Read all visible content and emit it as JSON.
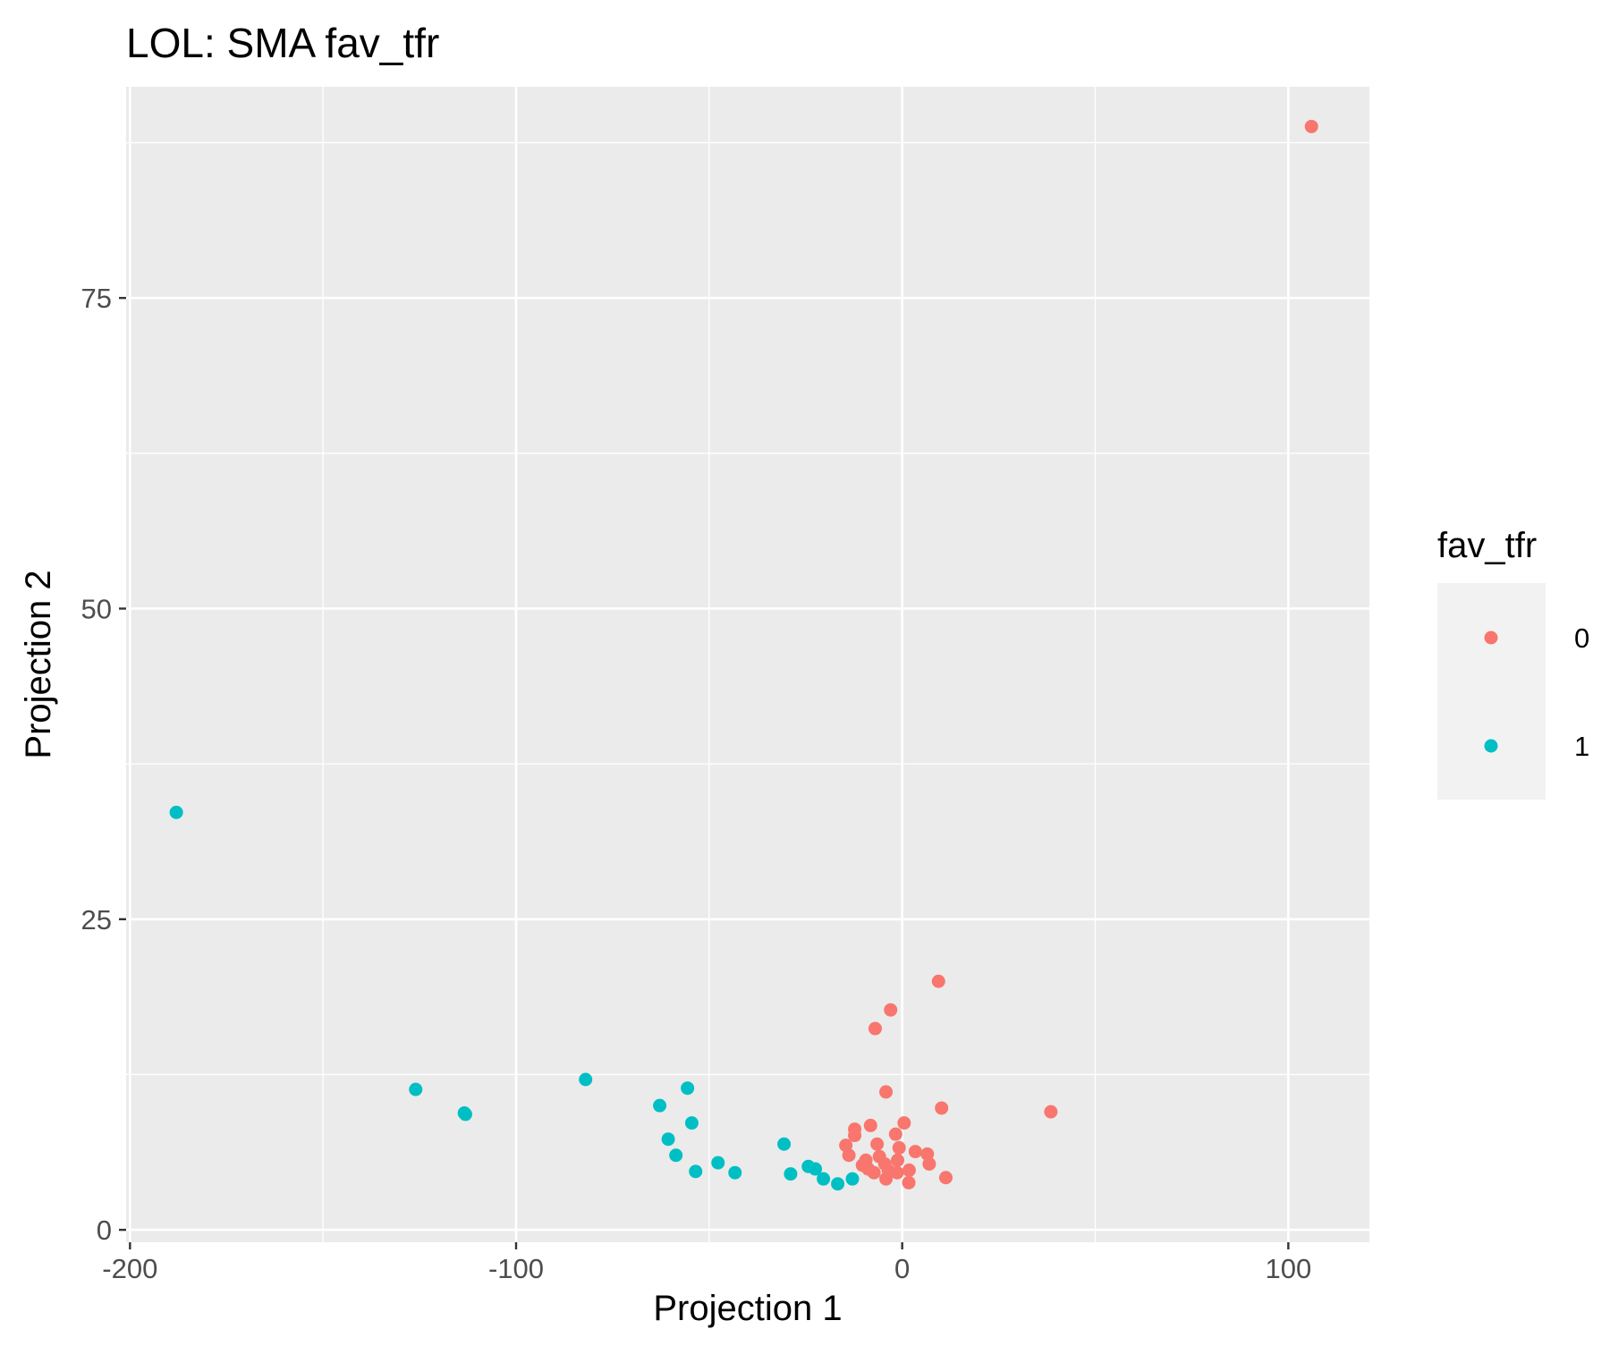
{
  "chart_data": {
    "type": "scatter",
    "title": "LOL: SMA fav_tfr",
    "xlabel": "Projection 1",
    "ylabel": "Projection 2",
    "xlim": [
      -201,
      121
    ],
    "ylim": [
      -1,
      92
    ],
    "x_ticks": [
      {
        "value": -200,
        "label": "-200"
      },
      {
        "value": -100,
        "label": "-100"
      },
      {
        "value": 0,
        "label": "0"
      },
      {
        "value": 100,
        "label": "100"
      }
    ],
    "y_ticks": [
      {
        "value": 0,
        "label": "0"
      },
      {
        "value": 25,
        "label": "25"
      },
      {
        "value": 50,
        "label": "50"
      },
      {
        "value": 75,
        "label": "75"
      }
    ],
    "grid": true,
    "legend": {
      "title": "fav_tfr",
      "position": "right",
      "entries": [
        {
          "label": "0",
          "color": "#F8766D"
        },
        {
          "label": "1",
          "color": "#00BFC4"
        }
      ]
    },
    "series": [
      {
        "name": "0",
        "color": "#F8766D",
        "points": [
          [
            106,
            88.8
          ],
          [
            9.4,
            20.0
          ],
          [
            -3,
            17.7
          ],
          [
            -7,
            16.2
          ],
          [
            -4.2,
            11.1
          ],
          [
            38.5,
            9.5
          ],
          [
            10.2,
            9.8
          ],
          [
            0.5,
            8.6
          ],
          [
            -8.2,
            8.4
          ],
          [
            -12.3,
            8.1
          ],
          [
            -12.3,
            7.6
          ],
          [
            -1.7,
            7.7
          ],
          [
            -14.6,
            6.8
          ],
          [
            -6.5,
            6.9
          ],
          [
            -0.8,
            6.6
          ],
          [
            -13.8,
            6.0
          ],
          [
            3.4,
            6.3
          ],
          [
            6.5,
            6.1
          ],
          [
            -9.4,
            5.6
          ],
          [
            -5.9,
            5.9
          ],
          [
            -1.2,
            5.6
          ],
          [
            -4.5,
            5.3
          ],
          [
            -10.3,
            5.2
          ],
          [
            7,
            5.3
          ],
          [
            -8.8,
            4.9
          ],
          [
            -3.6,
            4.8
          ],
          [
            1.8,
            4.8
          ],
          [
            -7.3,
            4.6
          ],
          [
            -4.2,
            4.1
          ],
          [
            -1.3,
            4.6
          ],
          [
            11.3,
            4.2
          ],
          [
            1.7,
            3.8
          ]
        ]
      },
      {
        "name": "1",
        "color": "#00BFC4",
        "points": [
          [
            -188,
            33.6
          ],
          [
            -126,
            11.3
          ],
          [
            -113.4,
            9.4
          ],
          [
            -113.1,
            9.3
          ],
          [
            -82,
            12.1
          ],
          [
            -62.8,
            10.0
          ],
          [
            -55.6,
            11.4
          ],
          [
            -54.5,
            8.6
          ],
          [
            -60.6,
            7.3
          ],
          [
            -58.6,
            6.0
          ],
          [
            -47.7,
            5.4
          ],
          [
            -53.5,
            4.7
          ],
          [
            -43.3,
            4.6
          ],
          [
            -30.6,
            6.9
          ],
          [
            -24.3,
            5.1
          ],
          [
            -22.5,
            4.9
          ],
          [
            -28.9,
            4.5
          ],
          [
            -20.4,
            4.1
          ],
          [
            -16.7,
            3.7
          ],
          [
            -12.9,
            4.1
          ]
        ]
      }
    ]
  }
}
